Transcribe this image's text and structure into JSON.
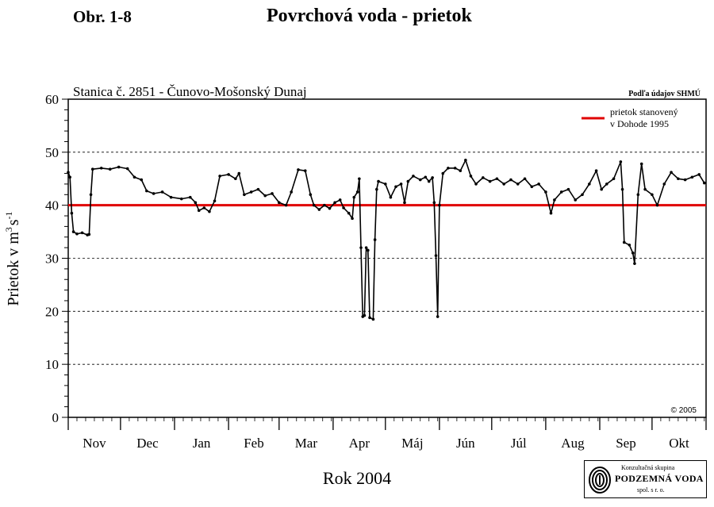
{
  "header": {
    "figure_label": "Obr. 1-8",
    "title": "Povrchová voda - prietok"
  },
  "logo": {
    "top_text": "Konzultačná skupina",
    "name": "PODZEMNÁ VODA",
    "sub_text": "spol. s r. o."
  },
  "chart_data": {
    "type": "line",
    "title": "Stanica č. 2851 - Čunovo-Mošonský Dunaj",
    "source_note": "Podľa údajov SHMÚ",
    "copyright": "© 2005",
    "xlabel": "Rok 2004",
    "ylabel_main": "Prietok v m",
    "ylabel_sup1": "3",
    "ylabel_mid": "s",
    "ylabel_sup2": "-1",
    "ylim": [
      0,
      60
    ],
    "yticks": [
      0,
      10,
      20,
      30,
      40,
      50,
      60
    ],
    "grid": "horizontal dashed",
    "legend_position": "top-right",
    "x_categories": [
      "Nov",
      "Dec",
      "Jan",
      "Feb",
      "Mar",
      "Apr",
      "Máj",
      "Jún",
      "Júl",
      "Aug",
      "Sep",
      "Okt"
    ],
    "x_period": "2003-11-01 to 2004-10-31",
    "series": [
      {
        "name": "prietok stanovený v Dohode 1995",
        "legend_lines": [
          "prietok stanovený",
          "v Dohode 1995"
        ],
        "type": "reference-line",
        "color": "#e00000",
        "value": 40
      },
      {
        "color": "#000000",
        "marker": "dot",
        "points": [
          [
            "2003-11-01",
            46.2
          ],
          [
            "2003-11-02",
            45.3
          ],
          [
            "2003-11-03",
            38.5
          ],
          [
            "2003-11-04",
            35.0
          ],
          [
            "2003-11-06",
            34.6
          ],
          [
            "2003-11-09",
            34.8
          ],
          [
            "2003-11-12",
            34.4
          ],
          [
            "2003-11-13",
            34.5
          ],
          [
            "2003-11-14",
            42.0
          ],
          [
            "2003-11-15",
            46.8
          ],
          [
            "2003-11-20",
            47.0
          ],
          [
            "2003-11-25",
            46.8
          ],
          [
            "2003-11-30",
            47.2
          ],
          [
            "2003-12-05",
            46.9
          ],
          [
            "2003-12-09",
            45.3
          ],
          [
            "2003-12-13",
            44.8
          ],
          [
            "2003-12-16",
            42.7
          ],
          [
            "2003-12-20",
            42.2
          ],
          [
            "2003-12-25",
            42.5
          ],
          [
            "2003-12-30",
            41.5
          ],
          [
            "2004-01-05",
            41.2
          ],
          [
            "2004-01-10",
            41.5
          ],
          [
            "2004-01-13",
            40.5
          ],
          [
            "2004-01-15",
            39.0
          ],
          [
            "2004-01-18",
            39.5
          ],
          [
            "2004-01-21",
            38.8
          ],
          [
            "2004-01-24",
            40.8
          ],
          [
            "2004-01-27",
            45.5
          ],
          [
            "2004-02-01",
            45.8
          ],
          [
            "2004-02-05",
            45.0
          ],
          [
            "2004-02-07",
            46.0
          ],
          [
            "2004-02-10",
            42.0
          ],
          [
            "2004-02-14",
            42.5
          ],
          [
            "2004-02-18",
            43.0
          ],
          [
            "2004-02-22",
            41.8
          ],
          [
            "2004-02-26",
            42.2
          ],
          [
            "2004-03-01",
            40.5
          ],
          [
            "2004-03-05",
            40.0
          ],
          [
            "2004-03-08",
            42.5
          ],
          [
            "2004-03-12",
            46.7
          ],
          [
            "2004-03-16",
            46.5
          ],
          [
            "2004-03-19",
            42.0
          ],
          [
            "2004-03-21",
            40.0
          ],
          [
            "2004-03-24",
            39.2
          ],
          [
            "2004-03-27",
            40.0
          ],
          [
            "2004-03-30",
            39.4
          ],
          [
            "2004-04-02",
            40.5
          ],
          [
            "2004-04-05",
            41.0
          ],
          [
            "2004-04-07",
            39.5
          ],
          [
            "2004-04-10",
            38.5
          ],
          [
            "2004-04-12",
            37.5
          ],
          [
            "2004-04-13",
            41.5
          ],
          [
            "2004-04-15",
            42.5
          ],
          [
            "2004-04-16",
            45.0
          ],
          [
            "2004-04-17",
            32.0
          ],
          [
            "2004-04-18",
            19.0
          ],
          [
            "2004-04-19",
            19.2
          ],
          [
            "2004-04-20",
            32.0
          ],
          [
            "2004-04-21",
            31.5
          ],
          [
            "2004-04-22",
            18.8
          ],
          [
            "2004-04-24",
            18.5
          ],
          [
            "2004-04-25",
            33.5
          ],
          [
            "2004-04-26",
            43.0
          ],
          [
            "2004-04-27",
            44.5
          ],
          [
            "2004-05-01",
            44.0
          ],
          [
            "2004-05-04",
            41.5
          ],
          [
            "2004-05-07",
            43.5
          ],
          [
            "2004-05-10",
            44.0
          ],
          [
            "2004-05-12",
            40.5
          ],
          [
            "2004-05-14",
            44.5
          ],
          [
            "2004-05-17",
            45.5
          ],
          [
            "2004-05-21",
            44.8
          ],
          [
            "2004-05-24",
            45.3
          ],
          [
            "2004-05-26",
            44.5
          ],
          [
            "2004-05-28",
            45.2
          ],
          [
            "2004-05-29",
            40.5
          ],
          [
            "2004-05-30",
            30.5
          ],
          [
            "2004-05-31",
            19.0
          ],
          [
            "2004-06-01",
            40.0
          ],
          [
            "2004-06-03",
            46.0
          ],
          [
            "2004-06-06",
            47.0
          ],
          [
            "2004-06-10",
            47.0
          ],
          [
            "2004-06-13",
            46.5
          ],
          [
            "2004-06-16",
            48.5
          ],
          [
            "2004-06-19",
            45.5
          ],
          [
            "2004-06-22",
            44.0
          ],
          [
            "2004-06-26",
            45.2
          ],
          [
            "2004-06-30",
            44.5
          ],
          [
            "2004-07-04",
            45.0
          ],
          [
            "2004-07-08",
            44.0
          ],
          [
            "2004-07-12",
            44.8
          ],
          [
            "2004-07-16",
            44.0
          ],
          [
            "2004-07-20",
            45.0
          ],
          [
            "2004-07-24",
            43.5
          ],
          [
            "2004-07-28",
            44.0
          ],
          [
            "2004-08-01",
            42.5
          ],
          [
            "2004-08-04",
            38.5
          ],
          [
            "2004-08-06",
            41.0
          ],
          [
            "2004-08-10",
            42.5
          ],
          [
            "2004-08-14",
            43.0
          ],
          [
            "2004-08-18",
            41.0
          ],
          [
            "2004-08-22",
            42.0
          ],
          [
            "2004-08-26",
            44.0
          ],
          [
            "2004-08-30",
            46.5
          ],
          [
            "2004-09-02",
            43.0
          ],
          [
            "2004-09-05",
            44.0
          ],
          [
            "2004-09-09",
            45.0
          ],
          [
            "2004-09-13",
            48.2
          ],
          [
            "2004-09-14",
            43.0
          ],
          [
            "2004-09-15",
            33.0
          ],
          [
            "2004-09-18",
            32.5
          ],
          [
            "2004-09-20",
            31.0
          ],
          [
            "2004-09-21",
            29.0
          ],
          [
            "2004-09-23",
            42.0
          ],
          [
            "2004-09-25",
            47.8
          ],
          [
            "2004-09-27",
            43.0
          ],
          [
            "2004-10-01",
            42.0
          ],
          [
            "2004-10-04",
            40.0
          ],
          [
            "2004-10-08",
            44.0
          ],
          [
            "2004-10-12",
            46.2
          ],
          [
            "2004-10-16",
            45.0
          ],
          [
            "2004-10-20",
            44.8
          ],
          [
            "2004-10-24",
            45.3
          ],
          [
            "2004-10-28",
            45.8
          ],
          [
            "2004-10-31",
            44.2
          ]
        ]
      }
    ]
  }
}
